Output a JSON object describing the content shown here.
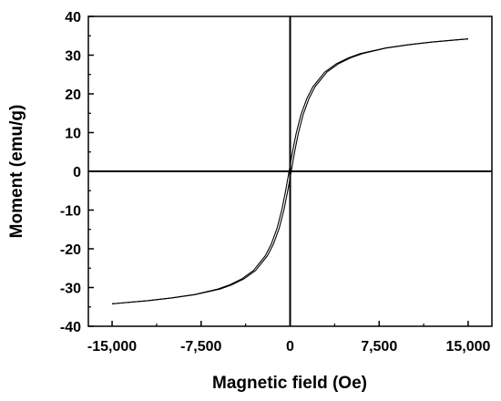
{
  "chart_data": {
    "type": "line",
    "xlabel": "Magnetic field (Oe)",
    "ylabel": "Moment (emu/g)",
    "xlim": [
      -17000,
      17000
    ],
    "ylim": [
      -40,
      40
    ],
    "xticks": [
      -15000,
      -7500,
      0,
      7500,
      15000
    ],
    "xtick_labels": [
      "-15,000",
      "-7,500",
      "0",
      "7,500",
      "15,000"
    ],
    "yticks": [
      -40,
      -30,
      -20,
      -10,
      0,
      10,
      20,
      30,
      40
    ],
    "ytick_labels": [
      "-40",
      "-30",
      "-20",
      "-10",
      "0",
      "10",
      "20",
      "30",
      "40"
    ],
    "zero_lines": true,
    "grid": false,
    "series": [
      {
        "x": [
          -15000,
          -12000,
          -10000,
          -8000,
          -6000,
          -5000,
          -4000,
          -3000,
          -2000,
          -1500,
          -1000,
          -600,
          -300,
          -150,
          0,
          150,
          300,
          600,
          1000,
          1500,
          2000,
          3000,
          4000,
          5000,
          6000,
          8000,
          10000,
          12000,
          15000
        ],
        "y": [
          -34.2,
          -33.4,
          -32.7,
          -31.8,
          -30.4,
          -29.3,
          -27.8,
          -25.6,
          -21.8,
          -18.8,
          -14.6,
          -9.8,
          -5.2,
          -2.6,
          0,
          2.6,
          5.2,
          9.8,
          14.6,
          18.8,
          21.8,
          25.6,
          27.8,
          29.3,
          30.4,
          31.8,
          32.7,
          33.4,
          34.2
        ]
      }
    ],
    "hysteresis_offset_oe": 90,
    "line_color": "#000000"
  }
}
